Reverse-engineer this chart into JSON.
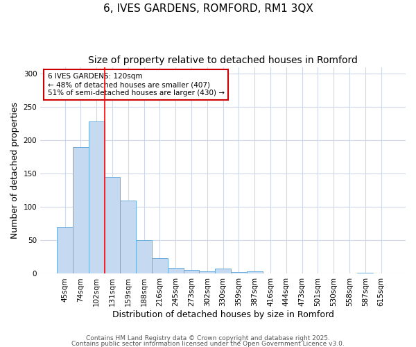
{
  "title_line1": "6, IVES GARDENS, ROMFORD, RM1 3QX",
  "title_line2": "Size of property relative to detached houses in Romford",
  "xlabel": "Distribution of detached houses by size in Romford",
  "ylabel": "Number of detached properties",
  "categories": [
    "45sqm",
    "74sqm",
    "102sqm",
    "131sqm",
    "159sqm",
    "188sqm",
    "216sqm",
    "245sqm",
    "273sqm",
    "302sqm",
    "330sqm",
    "359sqm",
    "387sqm",
    "416sqm",
    "444sqm",
    "473sqm",
    "501sqm",
    "530sqm",
    "558sqm",
    "587sqm",
    "615sqm"
  ],
  "values": [
    70,
    190,
    228,
    145,
    110,
    50,
    23,
    9,
    6,
    4,
    8,
    3,
    4,
    0,
    0,
    0,
    0,
    0,
    0,
    2,
    0
  ],
  "bar_color": "#c5d9f0",
  "bar_edge_color": "#6aaddc",
  "red_line_x": 2.5,
  "annotation_text": "6 IVES GARDENS: 120sqm\n← 48% of detached houses are smaller (407)\n51% of semi-detached houses are larger (430) →",
  "annotation_box_color": "#ffffff",
  "annotation_box_edge": "#cc0000",
  "ylim": [
    0,
    310
  ],
  "yticks": [
    0,
    50,
    100,
    150,
    200,
    250,
    300
  ],
  "footnote_line1": "Contains HM Land Registry data © Crown copyright and database right 2025.",
  "footnote_line2": "Contains public sector information licensed under the Open Government Licence v3.0.",
  "background_color": "#ffffff",
  "grid_color": "#d0d8e8",
  "title_fontsize": 11,
  "subtitle_fontsize": 10,
  "label_fontsize": 9,
  "tick_fontsize": 7.5,
  "footnote_fontsize": 6.5
}
